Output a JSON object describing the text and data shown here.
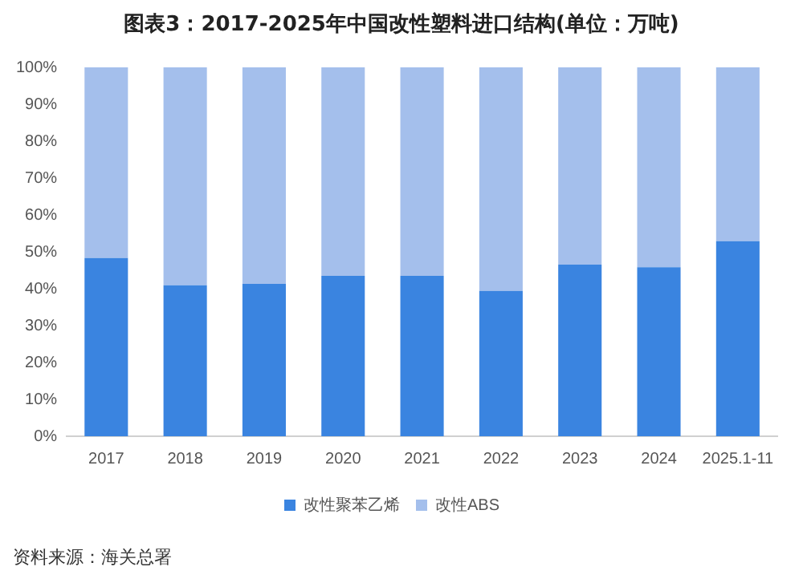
{
  "chart_data": {
    "type": "bar",
    "title": "图表3：2017-2025年中国改性塑料进口结构(单位：万吨)",
    "categories": [
      "2017",
      "2018",
      "2019",
      "2020",
      "2021",
      "2022",
      "2023",
      "2024",
      "2025.1-11"
    ],
    "stacked": true,
    "series": [
      {
        "name": "改性聚苯乙烯",
        "color": "#3a84e0",
        "values": [
          48.3,
          40.9,
          41.3,
          43.5,
          43.5,
          39.4,
          46.5,
          45.8,
          52.9
        ]
      },
      {
        "name": "改性ABS",
        "color": "#a4bfec",
        "values": [
          51.7,
          59.1,
          58.7,
          56.5,
          56.5,
          60.6,
          53.5,
          54.2,
          47.1
        ]
      }
    ],
    "ylim": [
      0,
      100
    ],
    "yticks": [
      {
        "value": 0,
        "label": "0%"
      },
      {
        "value": 10,
        "label": "10%"
      },
      {
        "value": 20,
        "label": "20%"
      },
      {
        "value": 30,
        "label": "30%"
      },
      {
        "value": 40,
        "label": "40%"
      },
      {
        "value": 50,
        "label": "50%"
      },
      {
        "value": 60,
        "label": "60%"
      },
      {
        "value": 70,
        "label": "70%"
      },
      {
        "value": 80,
        "label": "80%"
      },
      {
        "value": 90,
        "label": "90%"
      },
      {
        "value": 100,
        "label": "100%"
      }
    ],
    "grid": false,
    "legend": "bottom",
    "annotations": [
      "资料来源：海关总署"
    ]
  }
}
